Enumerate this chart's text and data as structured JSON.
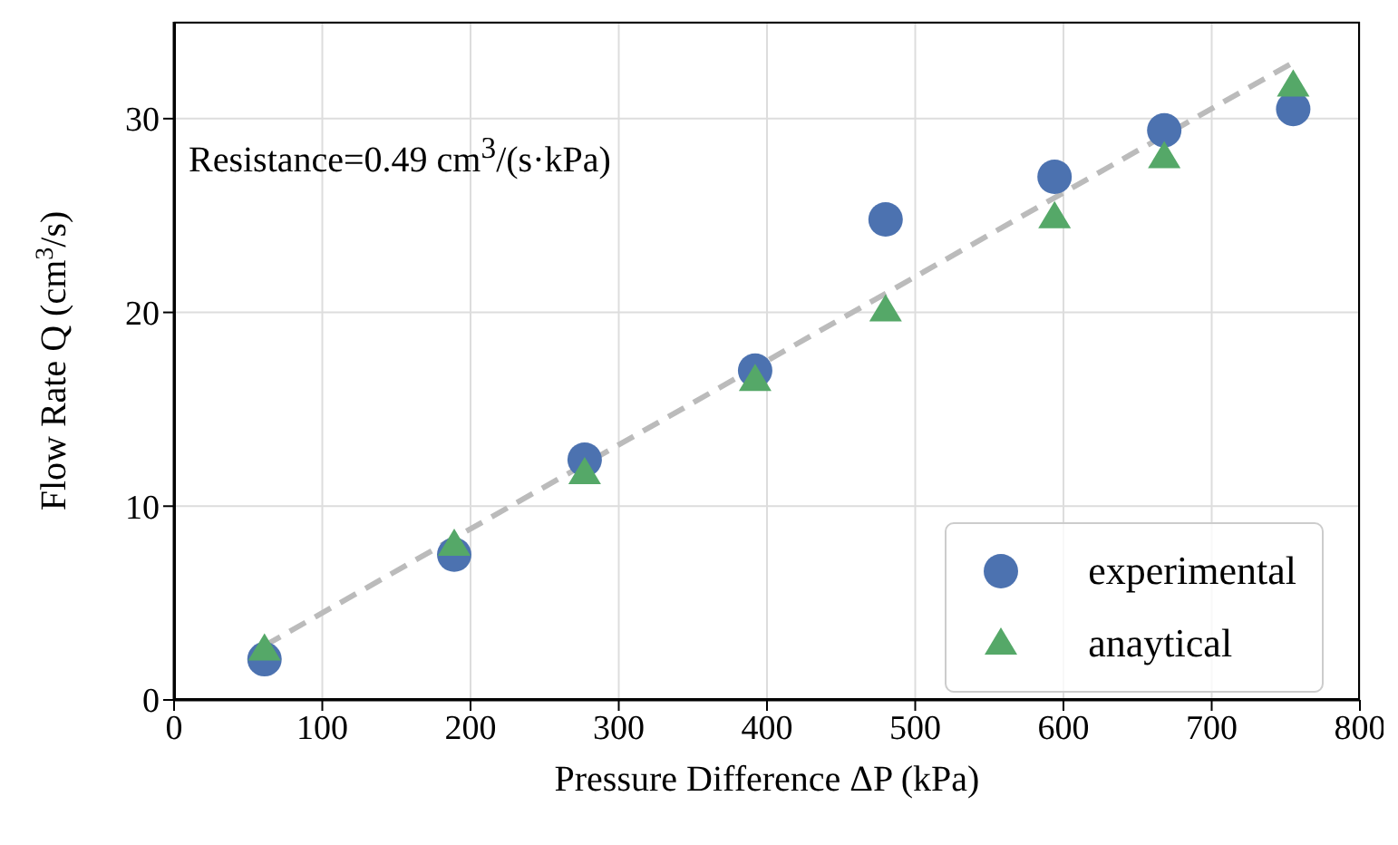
{
  "chart_data": {
    "type": "scatter",
    "xlabel": "Pressure Difference ΔP (kPa)",
    "ylabel": "Flow Rate Q (cm$^{3}$/s)",
    "x": [
      61,
      189,
      277,
      392,
      480,
      594,
      668,
      755
    ],
    "series": [
      {
        "name": "experimental",
        "color": "#4c72b0",
        "marker": "circle",
        "values": [
          2.1,
          7.5,
          12.4,
          17.0,
          24.8,
          27.0,
          29.4,
          30.5
        ]
      },
      {
        "name": "anaytical",
        "color": "#55a868",
        "marker": "triangle",
        "values": [
          2.6,
          8.0,
          11.7,
          16.5,
          20.1,
          24.9,
          28.0,
          31.7
        ]
      },
      {
        "type": "line",
        "color": "#bbbbbb",
        "line_style": "dashed",
        "marker": "none",
        "x": [
          61,
          755
        ],
        "values": [
          2.8,
          32.9
        ]
      }
    ],
    "xlim": [
      0,
      800
    ],
    "xticks": [
      0,
      100,
      200,
      300,
      400,
      500,
      600,
      700,
      800
    ],
    "ylim": [
      0,
      35
    ],
    "yticks": [
      0,
      10,
      20,
      30
    ],
    "grid": true,
    "legend": "bottom right",
    "annotations": [
      "Resistance=0.49 cm$^{3}$/(s·kPa)"
    ]
  }
}
